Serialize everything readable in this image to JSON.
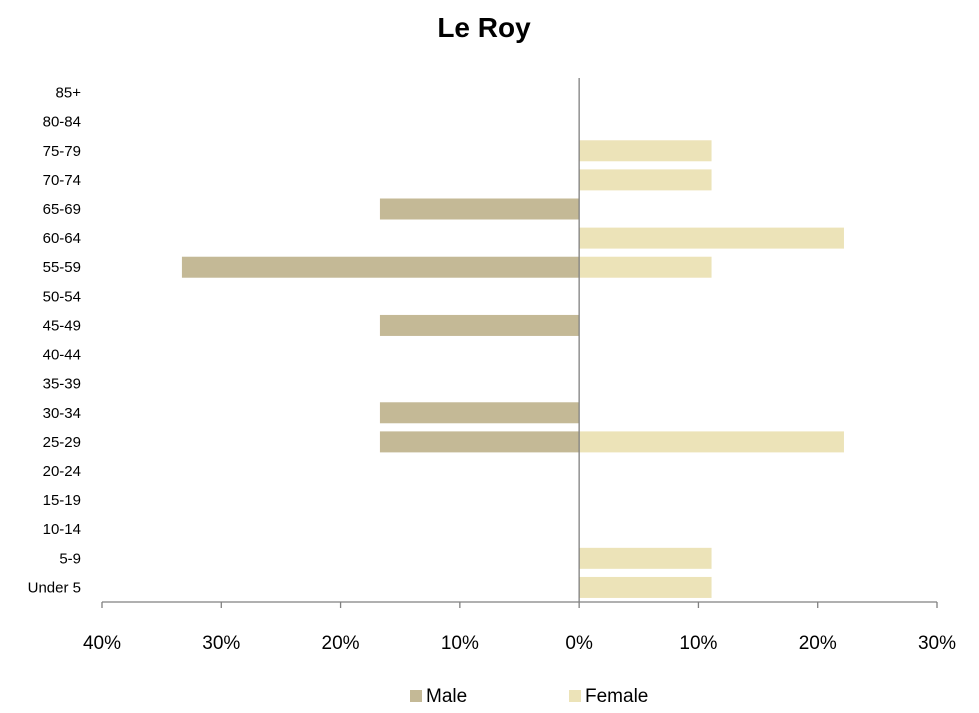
{
  "chart_data": {
    "type": "bar",
    "orientation": "horizontal",
    "title": "Le Roy",
    "categories": [
      "85+",
      "80-84",
      "75-79",
      "70-74",
      "65-69",
      "60-64",
      "55-59",
      "50-54",
      "45-49",
      "40-44",
      "35-39",
      "30-34",
      "25-29",
      "20-24",
      "15-19",
      "10-14",
      "5-9",
      "Under 5"
    ],
    "series": [
      {
        "name": "Male",
        "color": "#c4b996",
        "values": [
          0,
          0,
          0,
          0,
          -16.7,
          0,
          -33.3,
          0,
          -16.7,
          0,
          0,
          -16.7,
          -16.7,
          0,
          0,
          0,
          0,
          0
        ]
      },
      {
        "name": "Female",
        "color": "#ece3b8",
        "values": [
          0,
          0,
          11.1,
          11.1,
          0,
          22.2,
          11.1,
          0,
          0,
          0,
          0,
          0,
          22.2,
          0,
          0,
          0,
          11.1,
          11.1
        ]
      }
    ],
    "xlim": [
      -40,
      30
    ],
    "xticks": [
      -40,
      -30,
      -20,
      -10,
      0,
      10,
      20,
      30
    ],
    "xtick_labels": [
      "40%",
      "30%",
      "20%",
      "10%",
      "0%",
      "10%",
      "20%",
      "30%"
    ],
    "unit": "%",
    "legend_position": "bottom",
    "grid": false
  }
}
